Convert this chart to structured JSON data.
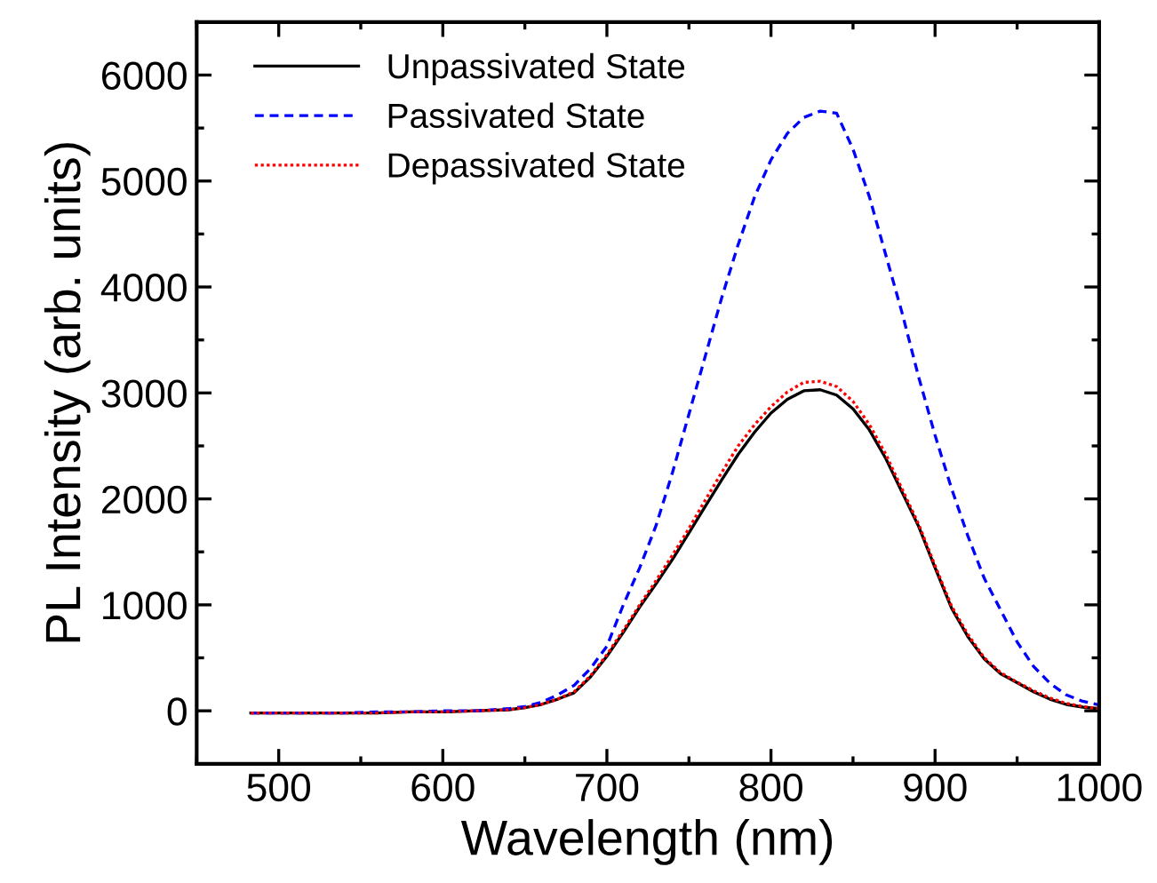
{
  "chart_data": {
    "type": "line",
    "xlabel": "Wavelength (nm)",
    "ylabel": "PL Intensity (arb. units)",
    "x": [
      483,
      500,
      520,
      540,
      560,
      580,
      600,
      620,
      640,
      650,
      660,
      670,
      680,
      690,
      700,
      710,
      720,
      730,
      740,
      750,
      760,
      770,
      780,
      790,
      800,
      810,
      820,
      830,
      840,
      850,
      860,
      870,
      880,
      890,
      900,
      910,
      920,
      930,
      940,
      950,
      960,
      970,
      980,
      990,
      1000
    ],
    "series": [
      {
        "name": "Unpassivated State",
        "color": "#000000",
        "line_style": "solid",
        "values": [
          -20,
          -20,
          -20,
          -20,
          -20,
          -10,
          -10,
          0,
          10,
          30,
          60,
          110,
          170,
          320,
          515,
          740,
          980,
          1200,
          1430,
          1680,
          1930,
          2180,
          2420,
          2630,
          2810,
          2940,
          3020,
          3030,
          2980,
          2850,
          2650,
          2380,
          2060,
          1740,
          1350,
          970,
          700,
          490,
          350,
          265,
          180,
          110,
          60,
          35,
          20
        ]
      },
      {
        "name": "Passivated State",
        "color": "#0000ff",
        "line_style": "dashed",
        "values": [
          -20,
          -20,
          -20,
          -20,
          -10,
          -10,
          0,
          0,
          20,
          40,
          80,
          150,
          240,
          400,
          610,
          1000,
          1350,
          1750,
          2250,
          2800,
          3350,
          3900,
          4400,
          4850,
          5200,
          5450,
          5600,
          5660,
          5640,
          5300,
          4850,
          4300,
          3750,
          3150,
          2600,
          2100,
          1650,
          1250,
          950,
          650,
          420,
          260,
          150,
          90,
          55
        ]
      },
      {
        "name": "Depassivated State",
        "color": "#ff0000",
        "line_style": "dotted",
        "values": [
          -20,
          -20,
          -20,
          -20,
          -20,
          -10,
          -10,
          0,
          10,
          30,
          60,
          110,
          180,
          330,
          530,
          760,
          1000,
          1230,
          1470,
          1720,
          1990,
          2250,
          2500,
          2700,
          2870,
          3010,
          3100,
          3110,
          3060,
          2920,
          2700,
          2420,
          2090,
          1760,
          1370,
          990,
          720,
          500,
          360,
          270,
          190,
          120,
          70,
          40,
          20
        ]
      }
    ],
    "xlim": [
      450,
      1000
    ],
    "xticks": [
      500,
      600,
      700,
      800,
      900,
      1000
    ],
    "ylim": [
      -500,
      6500
    ],
    "yticks": [
      0,
      1000,
      2000,
      3000,
      4000,
      5000,
      6000
    ],
    "legend": "top left",
    "grid": false
  }
}
